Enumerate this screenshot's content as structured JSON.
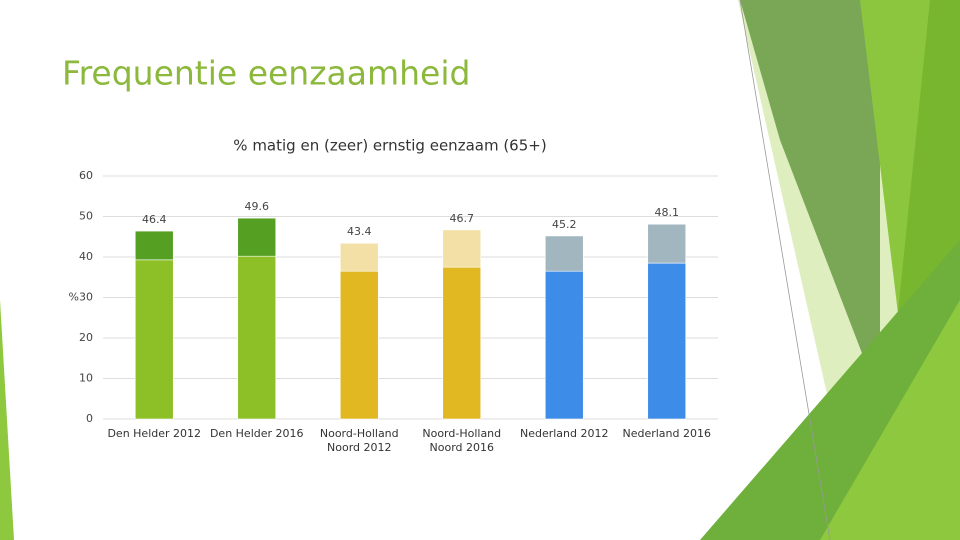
{
  "slide_title": "Frequentie eenzaamheid",
  "chart_data": {
    "type": "stacked_bar",
    "title": "% matig en (zeer) ernstig eenzaam (65+)",
    "categories": [
      "Den Helder 2012",
      "Den Helder 2016",
      "Noord-Holland Noord 2012",
      "Noord-Holland Noord 2016",
      "Nederland 2012",
      "Nederland 2016"
    ],
    "series": [
      {
        "values": [
          39.3,
          40.2,
          36.5,
          37.5,
          36.5,
          38.5
        ],
        "colors": [
          "#8dc026",
          "#8dc026",
          "#e2b822",
          "#e2b822",
          "#3d8de8",
          "#3d8de8"
        ]
      },
      {
        "values": [
          7.1,
          9.4,
          6.9,
          9.2,
          8.7,
          9.6
        ],
        "colors": [
          "#55a023",
          "#55a023",
          "#f3e0a6",
          "#f3e0a6",
          "#a2b6c0",
          "#a2b6c0"
        ]
      }
    ],
    "totals": [
      46.4,
      49.6,
      43.4,
      46.7,
      45.2,
      48.1
    ],
    "ylim": [
      0,
      60
    ],
    "yticks": [
      0,
      10,
      20,
      {
        "value": 30,
        "label": "%30"
      },
      40,
      50,
      60
    ],
    "grid": true
  }
}
